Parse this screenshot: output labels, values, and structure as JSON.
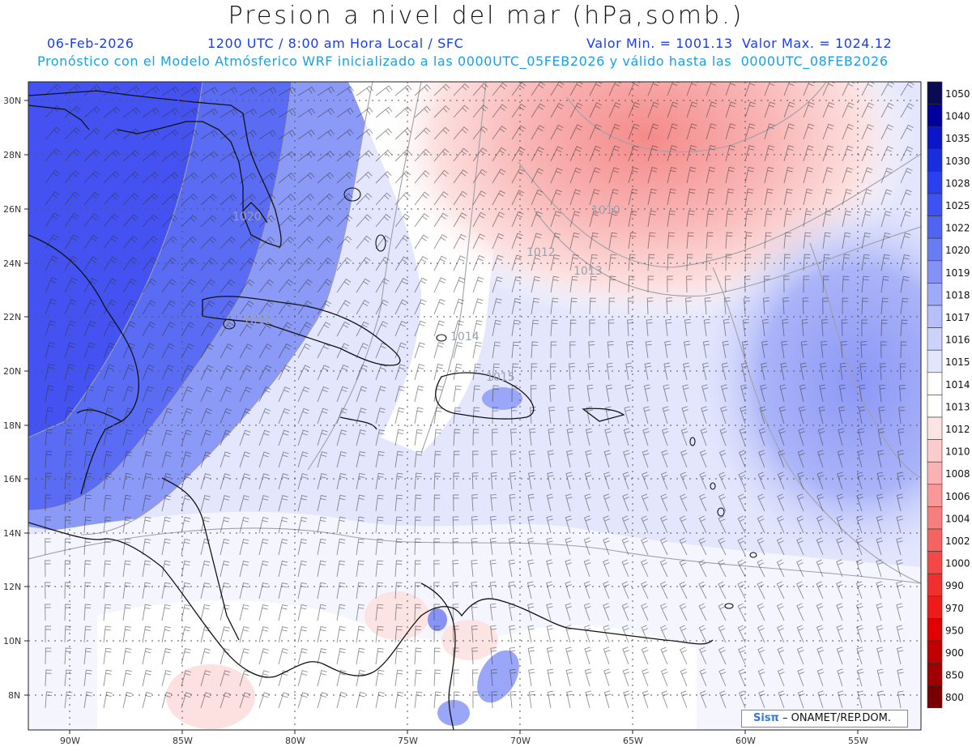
{
  "header": {
    "title": "Presion a nivel del mar (hPa,somb.)",
    "date": "06-Feb-2026",
    "time": "1200 UTC / 8:00 am Hora Local / SFC",
    "minmax": "Valor Min. = 1001.13  Valor Max. = 1024.12",
    "subtitle": "Pronóstico con el Modelo Atmósferico WRF inicializado a las 0000UTC_05FEB2026 y válido hasta las  0000UTC_08FEB2026"
  },
  "axes": {
    "lat_labels": [
      "30N",
      "28N",
      "26N",
      "24N",
      "22N",
      "20N",
      "18N",
      "16N",
      "14N",
      "12N",
      "10N",
      "8N"
    ],
    "lon_labels": [
      "90W",
      "85W",
      "80W",
      "75W",
      "70W",
      "65W",
      "60W",
      "55W"
    ]
  },
  "isobar_labels": [
    "1020",
    "1010",
    "1012",
    "1013",
    "1014",
    "1015",
    "1019"
  ],
  "colorbar": {
    "levels": [
      "1050",
      "1040",
      "1035",
      "1030",
      "1028",
      "1025",
      "1022",
      "1020",
      "1019",
      "1018",
      "1017",
      "1016",
      "1015",
      "1014",
      "1013",
      "1012",
      "1010",
      "1008",
      "1006",
      "1004",
      "1002",
      "1000",
      "990",
      "970",
      "950",
      "900",
      "850",
      "800"
    ],
    "colors": [
      "#0a0a55",
      "#00009a",
      "#0a16c8",
      "#1a2ce0",
      "#2a3ff0",
      "#3d52f2",
      "#5064f2",
      "#6a7cf4",
      "#8492f6",
      "#9eaaf8",
      "#b6bff9",
      "#ccd2fb",
      "#e2e6fd",
      "#ffffff",
      "#ffffff",
      "#fde4e4",
      "#fccccc",
      "#fab2b2",
      "#f89898",
      "#f67e7e",
      "#f46262",
      "#f24848",
      "#f03030",
      "#ef1a1a",
      "#e00000",
      "#c00000",
      "#a00000",
      "#7a0000"
    ]
  },
  "credit": {
    "brand": "Sisπ",
    "org": " – ONAMET/REP.DOM."
  }
}
